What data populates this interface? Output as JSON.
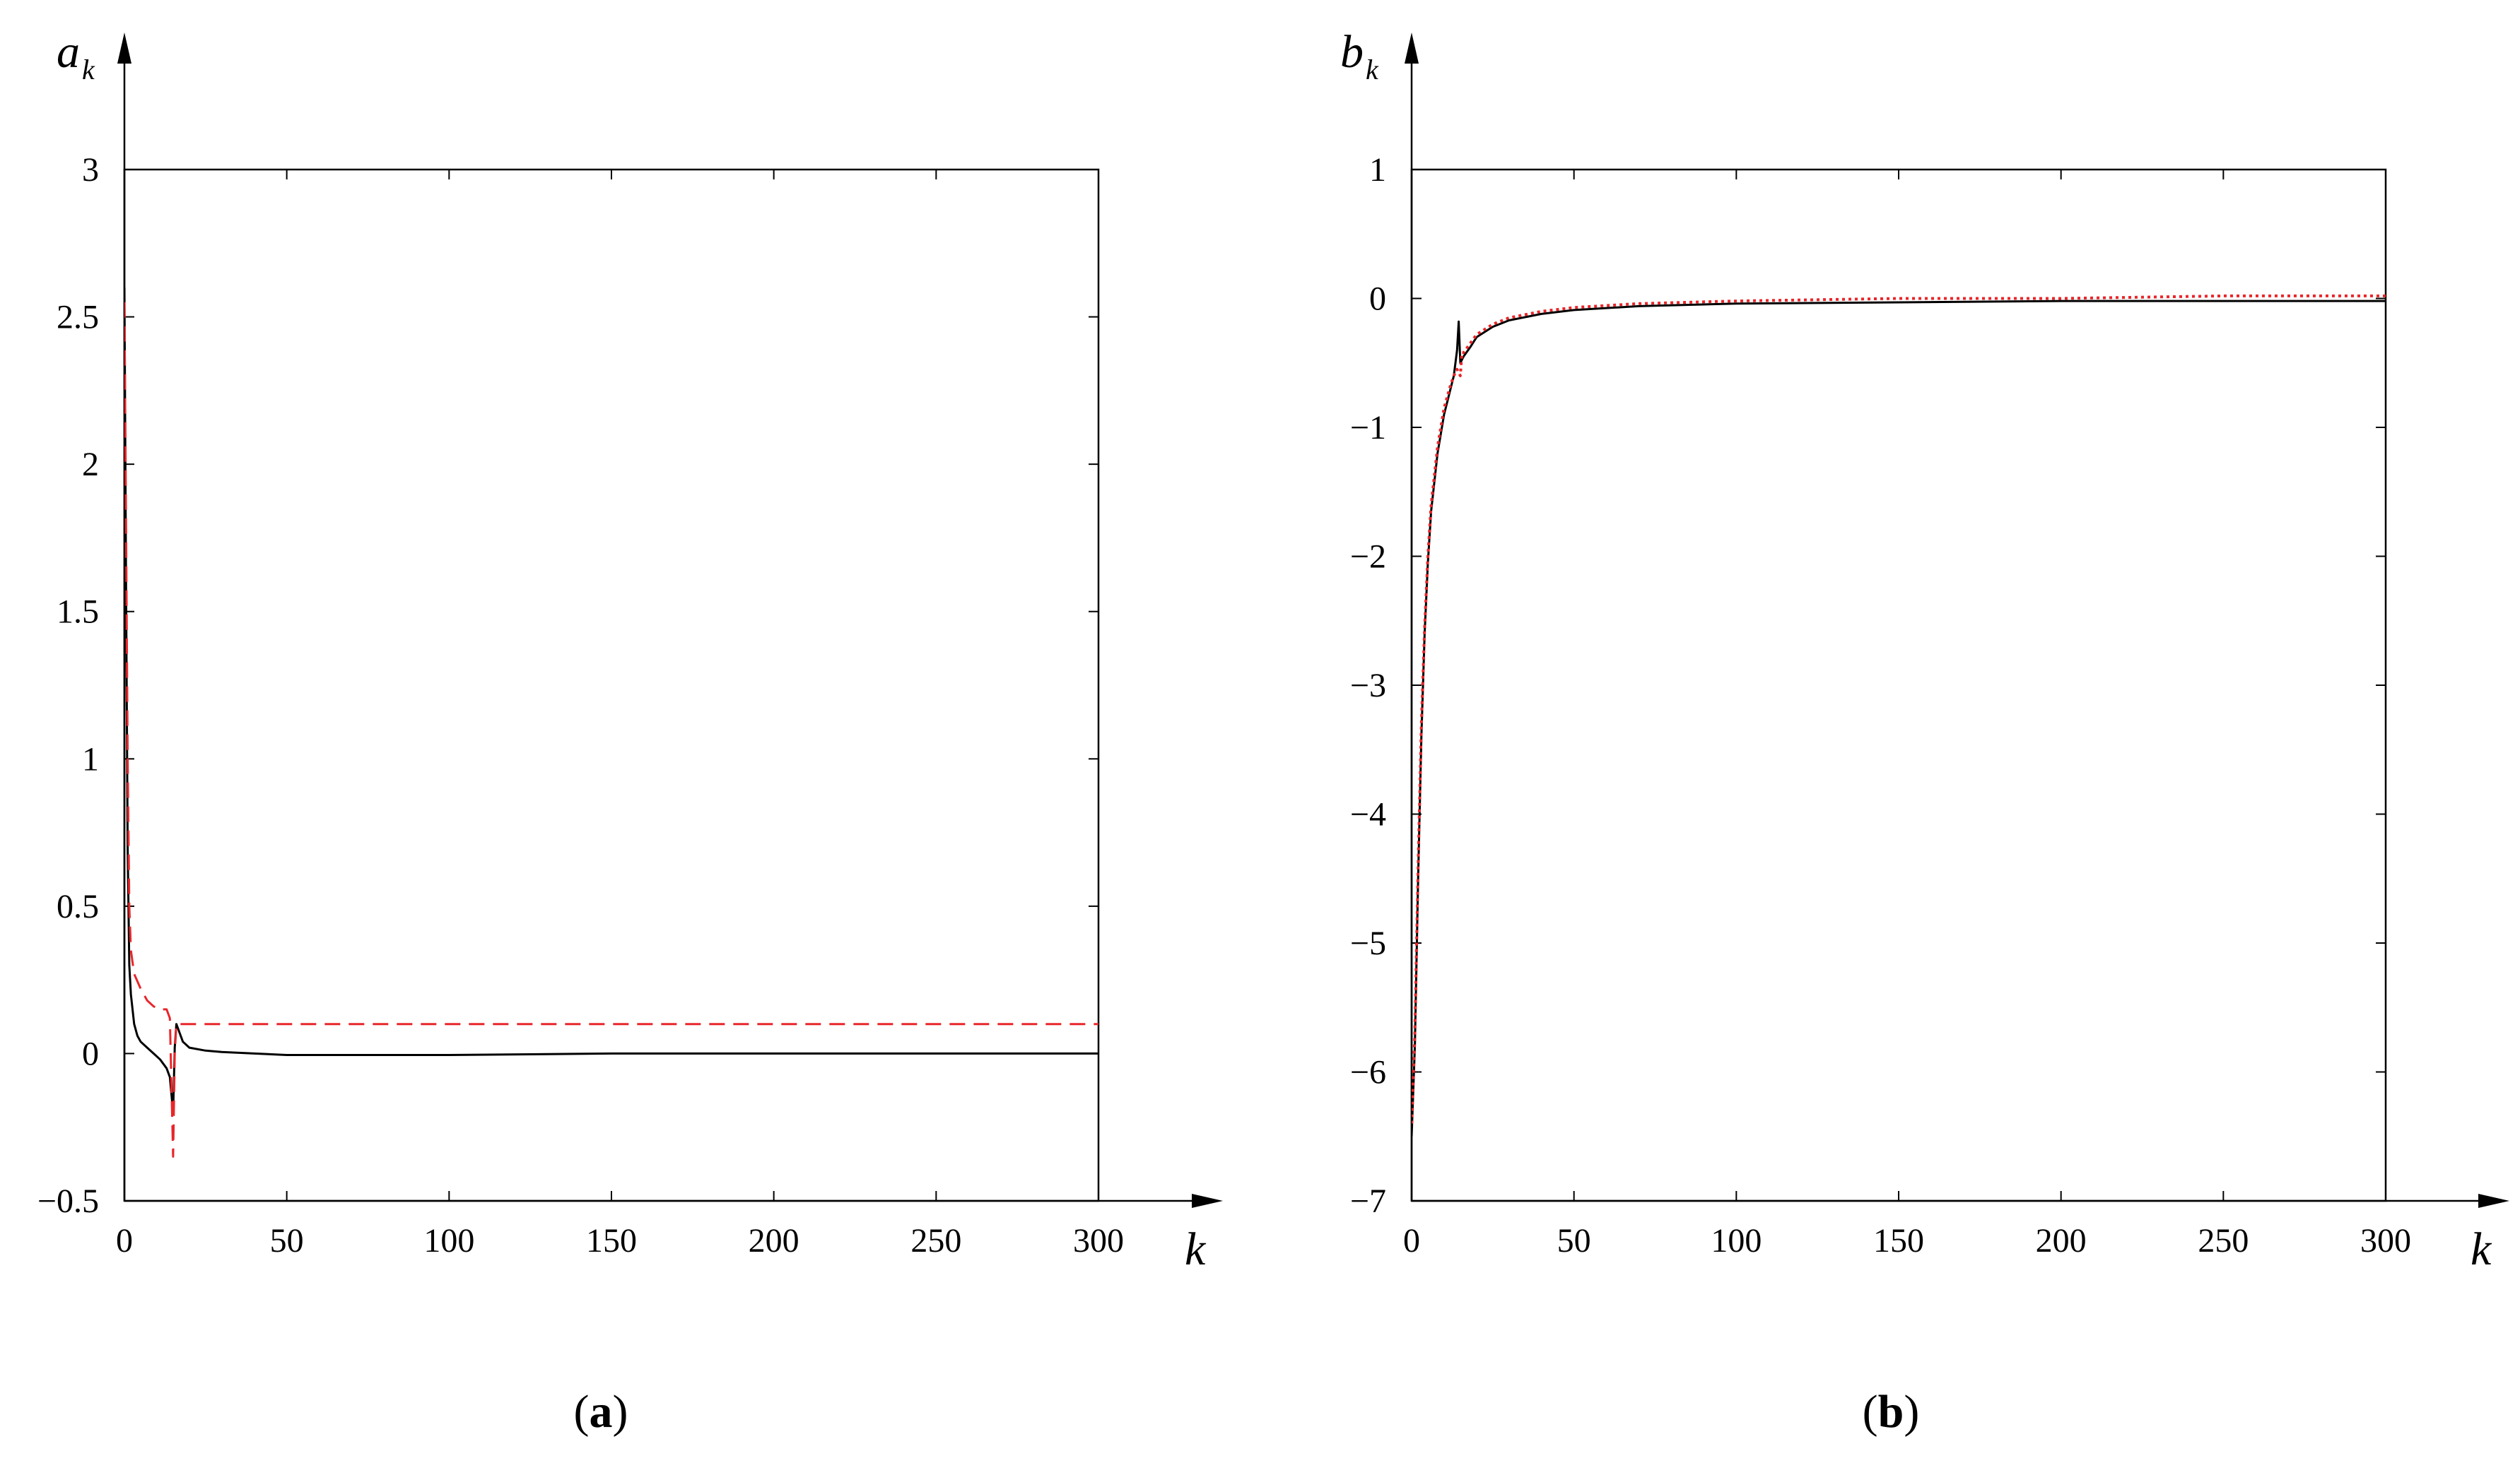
{
  "panels": [
    {
      "label_open": "(",
      "label_letter": "a",
      "label_close": ")",
      "y_symbol": "a",
      "y_subscript": "k",
      "x_symbol": "k",
      "x_ticks": [
        "0",
        "50",
        "100",
        "150",
        "200",
        "250",
        "300"
      ],
      "y_ticks": [
        "−0.5",
        "0",
        "0.5",
        "1",
        "1.5",
        "2",
        "2.5",
        "3"
      ]
    },
    {
      "label_open": "(",
      "label_letter": "b",
      "label_close": ")",
      "y_symbol": "b",
      "y_subscript": "k",
      "x_symbol": "k",
      "x_ticks": [
        "0",
        "50",
        "100",
        "150",
        "200",
        "250",
        "300"
      ],
      "y_ticks": [
        "−7",
        "−6",
        "−5",
        "−4",
        "−3",
        "−2",
        "−1",
        "0",
        "1"
      ]
    }
  ],
  "colors": {
    "black_series": "#000000",
    "red_series": "#e8262a"
  },
  "chart_data": [
    {
      "type": "line",
      "title": "",
      "xlabel": "k",
      "ylabel": "a_k",
      "xlim": [
        0,
        300
      ],
      "ylim": [
        -0.5,
        3
      ],
      "grid": false,
      "series": [
        {
          "style": "solid",
          "color": "black",
          "x": [
            0,
            0.5,
            1,
            1.5,
            2,
            3,
            4,
            5,
            7,
            9,
            11,
            13,
            14,
            15,
            15.5,
            16,
            18,
            20,
            25,
            30,
            40,
            50,
            70,
            100,
            150,
            200,
            250,
            300
          ],
          "y": [
            2.6,
            1.6,
            0.7,
            0.3,
            0.2,
            0.1,
            0.06,
            0.04,
            0.02,
            0.0,
            -0.02,
            -0.05,
            -0.08,
            -0.2,
            0.02,
            0.1,
            0.04,
            0.02,
            0.01,
            0.005,
            0.0,
            -0.005,
            -0.005,
            -0.005,
            0.0,
            0.0,
            0.0,
            0.0
          ]
        },
        {
          "style": "dashed",
          "color": "red",
          "x": [
            0,
            0.5,
            1,
            1.5,
            2,
            3,
            5,
            7,
            9,
            11,
            13,
            14,
            15,
            15.5,
            16,
            18,
            25,
            50,
            100,
            150,
            200,
            250,
            300
          ],
          "y": [
            2.55,
            1.8,
            1.0,
            0.5,
            0.35,
            0.27,
            0.22,
            0.18,
            0.16,
            0.15,
            0.15,
            0.12,
            -0.35,
            0.0,
            0.1,
            0.1,
            0.1,
            0.1,
            0.1,
            0.1,
            0.1,
            0.1,
            0.1
          ]
        }
      ]
    },
    {
      "type": "line",
      "title": "",
      "xlabel": "k",
      "ylabel": "b_k",
      "xlim": [
        0,
        300
      ],
      "ylim": [
        -7,
        1
      ],
      "grid": false,
      "series": [
        {
          "style": "solid",
          "color": "black",
          "x": [
            0,
            1,
            2,
            3,
            4,
            5,
            6,
            8,
            10,
            12,
            13,
            14,
            14.5,
            15,
            16,
            18,
            20,
            25,
            30,
            40,
            50,
            70,
            100,
            150,
            200,
            250,
            300
          ],
          "y": [
            -6.5,
            -5.8,
            -4.5,
            -3.4,
            -2.6,
            -2.05,
            -1.65,
            -1.2,
            -0.9,
            -0.7,
            -0.6,
            -0.4,
            -0.18,
            -0.5,
            -0.45,
            -0.38,
            -0.3,
            -0.22,
            -0.17,
            -0.12,
            -0.09,
            -0.06,
            -0.04,
            -0.03,
            -0.02,
            -0.02,
            -0.02
          ]
        },
        {
          "style": "dotted",
          "color": "red",
          "x": [
            0,
            1,
            2,
            3,
            4,
            5,
            6,
            8,
            10,
            12,
            13,
            14,
            15,
            15.5,
            16,
            18,
            20,
            25,
            30,
            40,
            50,
            70,
            100,
            150,
            200,
            250,
            300
          ],
          "y": [
            -6.4,
            -5.7,
            -4.4,
            -3.3,
            -2.55,
            -2.0,
            -1.6,
            -1.15,
            -0.85,
            -0.67,
            -0.6,
            -0.55,
            -0.6,
            -0.42,
            -0.42,
            -0.35,
            -0.28,
            -0.2,
            -0.15,
            -0.1,
            -0.07,
            -0.04,
            -0.02,
            0.0,
            0.0,
            0.02,
            0.02
          ]
        }
      ]
    }
  ]
}
